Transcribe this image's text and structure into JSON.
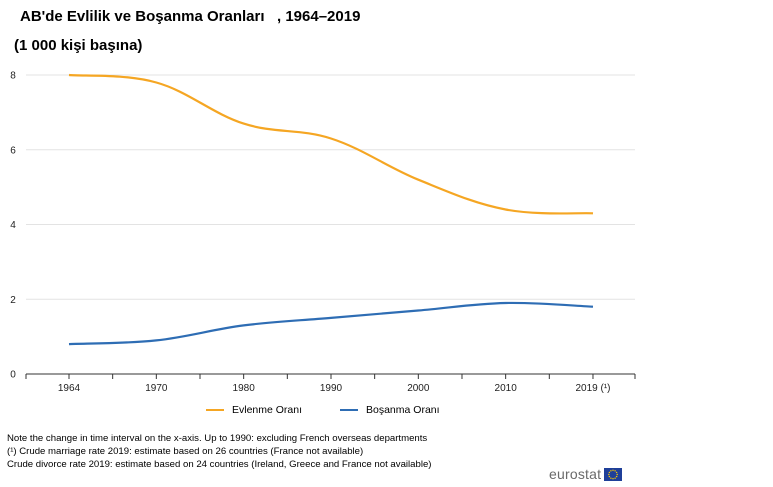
{
  "title": "AB'de Evlilik ve Boşanma Oranları   , 1964–2019",
  "subtitle": "(1 000 kişi başına)",
  "chart_data": {
    "type": "line",
    "categories": [
      "1964",
      "1970",
      "1980",
      "1990",
      "2000",
      "2010",
      "2019 (¹)"
    ],
    "series": [
      {
        "name": "Evlenme Oranı",
        "color": "#f5a623",
        "values": [
          8.0,
          7.8,
          6.7,
          6.3,
          5.2,
          4.4,
          4.3
        ]
      },
      {
        "name": "Boşanma Oranı",
        "color": "#2e6db4",
        "values": [
          0.8,
          0.9,
          1.3,
          1.5,
          1.7,
          1.9,
          1.8
        ]
      }
    ],
    "y_ticks": [
      "0",
      "2",
      "4",
      "6",
      "8"
    ],
    "ylim": [
      0,
      8
    ],
    "grid": true,
    "legend_position": "bottom"
  },
  "notes": [
    "Note the change in time interval on the x-axis.  Up to 1990: excluding French overseas  departments",
    "(¹) Crude marriage rate 2019: estimate based on 26 countries (France not available)",
    "Crude divorce rate 2019: estimate based on 24 countries (Ireland, Greece and France not available)"
  ],
  "logo": {
    "text": "eurostat",
    "flag_color": "#1f3f99",
    "star_color": "#ffcc00"
  }
}
